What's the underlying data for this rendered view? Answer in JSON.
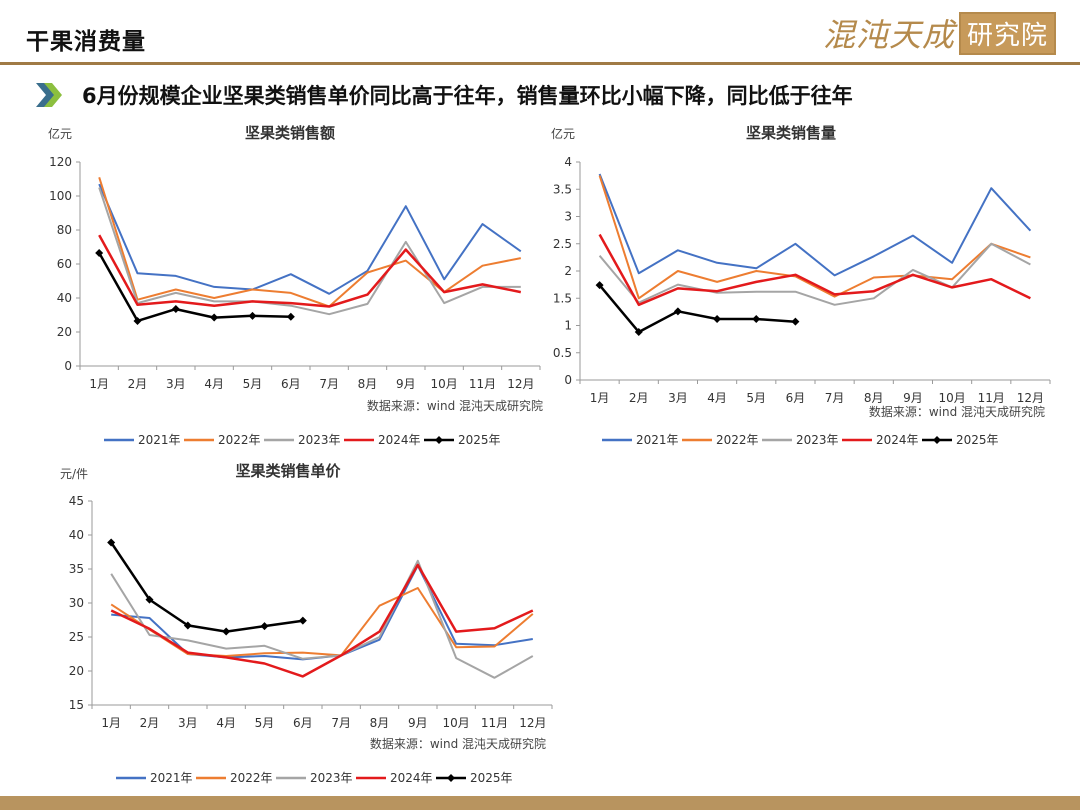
{
  "header": {
    "title": "干果消费量",
    "logo_main": "混沌天成",
    "logo_box": "研究院",
    "headline": "6月份规模企业坚果类销售单价同比高于往年，销售量环比小幅下降，同比低于往年"
  },
  "colors": {
    "accent": "#a07a45",
    "series": [
      "#4472c4",
      "#ed7d31",
      "#a5a5a5",
      "#e31a1c",
      "#000000"
    ]
  },
  "chart_data": [
    {
      "type": "line",
      "title": "坚果类销售额",
      "ylabel": "亿元",
      "source": "数据来源：wind  混沌天成研究院",
      "categories": [
        "1月",
        "2月",
        "3月",
        "4月",
        "5月",
        "6月",
        "7月",
        "8月",
        "9月",
        "10月",
        "11月",
        "12月"
      ],
      "ylim": [
        0,
        120
      ],
      "yticks": [
        0,
        20,
        40,
        60,
        80,
        100,
        120
      ],
      "ytick_labels": [
        "0",
        "20",
        "40",
        "60",
        "80",
        "100",
        "120"
      ],
      "legend": "bottom",
      "series": [
        {
          "name": "2021年",
          "values": [
            107,
            54.5,
            53,
            46.5,
            45,
            54,
            42.5,
            56,
            94,
            51,
            83.5,
            67.5
          ]
        },
        {
          "name": "2022年",
          "values": [
            111,
            39,
            45,
            40,
            45,
            43,
            35,
            55,
            62,
            43.5,
            59,
            63.5
          ]
        },
        {
          "name": "2023年",
          "values": [
            105,
            37,
            43,
            38,
            38,
            35.5,
            30.5,
            36.5,
            73,
            37,
            46.5,
            46.5
          ]
        },
        {
          "name": "2024年",
          "values": [
            77,
            36,
            38,
            35.5,
            38,
            37,
            35,
            42,
            68.5,
            43.5,
            48,
            43.5
          ]
        },
        {
          "name": "2025年",
          "values": [
            66.5,
            26.5,
            33.5,
            28.5,
            29.5,
            29,
            null,
            null,
            null,
            null,
            null,
            null
          ]
        }
      ]
    },
    {
      "type": "line",
      "title": "坚果类销售量",
      "ylabel": "亿元",
      "source": "数据来源：wind  混沌天成研究院",
      "categories": [
        "1月",
        "2月",
        "3月",
        "4月",
        "5月",
        "6月",
        "7月",
        "8月",
        "9月",
        "10月",
        "11月",
        "12月"
      ],
      "ylim": [
        0,
        4
      ],
      "yticks": [
        0,
        0.5,
        1,
        1.5,
        2,
        2.5,
        3,
        3.5,
        4
      ],
      "ytick_labels": [
        "0",
        "0.5",
        "1",
        "1.5",
        "2",
        "2.5",
        "3",
        "3.5",
        "4"
      ],
      "legend": "bottom",
      "series": [
        {
          "name": "2021年",
          "values": [
            3.78,
            1.96,
            2.38,
            2.15,
            2.05,
            2.5,
            1.92,
            2.27,
            2.65,
            2.15,
            3.52,
            2.74
          ]
        },
        {
          "name": "2022年",
          "values": [
            3.75,
            1.5,
            2.0,
            1.8,
            2.0,
            1.9,
            1.53,
            1.88,
            1.92,
            1.85,
            2.5,
            2.25
          ]
        },
        {
          "name": "2023年",
          "values": [
            2.28,
            1.42,
            1.75,
            1.6,
            1.62,
            1.62,
            1.38,
            1.5,
            2.02,
            1.7,
            2.5,
            2.12
          ]
        },
        {
          "name": "2024年",
          "values": [
            2.67,
            1.38,
            1.68,
            1.63,
            1.8,
            1.93,
            1.57,
            1.63,
            1.93,
            1.7,
            1.85,
            1.5
          ]
        },
        {
          "name": "2025年",
          "values": [
            1.74,
            0.88,
            1.26,
            1.12,
            1.12,
            1.07,
            null,
            null,
            null,
            null,
            null,
            null
          ]
        }
      ]
    },
    {
      "type": "line",
      "title": "坚果类销售单价",
      "ylabel": "元/件",
      "source": "数据来源：wind  混沌天成研究院",
      "categories": [
        "1月",
        "2月",
        "3月",
        "4月",
        "5月",
        "6月",
        "7月",
        "8月",
        "9月",
        "10月",
        "11月",
        "12月"
      ],
      "ylim": [
        15,
        45
      ],
      "yticks": [
        15,
        20,
        25,
        30,
        35,
        40,
        45
      ],
      "ytick_labels": [
        "15",
        "20",
        "25",
        "30",
        "35",
        "40",
        "45"
      ],
      "legend": "bottom",
      "series": [
        {
          "name": "2021年",
          "values": [
            28.3,
            27.8,
            22.5,
            22.0,
            22.2,
            21.7,
            22.3,
            24.6,
            35.5,
            24.0,
            23.8,
            24.7
          ]
        },
        {
          "name": "2022年",
          "values": [
            29.8,
            26.1,
            22.5,
            22.2,
            22.6,
            22.7,
            22.3,
            29.6,
            32.2,
            23.5,
            23.6,
            28.4
          ]
        },
        {
          "name": "2023年",
          "values": [
            34.3,
            25.3,
            24.5,
            23.3,
            23.7,
            21.8,
            22.3,
            25.0,
            36.2,
            21.9,
            19.0,
            22.2
          ]
        },
        {
          "name": "2024年",
          "values": [
            28.9,
            26.2,
            22.7,
            22.0,
            21.1,
            19.2,
            22.3,
            25.8,
            35.6,
            25.8,
            26.3,
            28.9
          ]
        },
        {
          "name": "2025年",
          "values": [
            38.9,
            30.5,
            26.7,
            25.8,
            26.6,
            27.4,
            null,
            null,
            null,
            null,
            null,
            null
          ]
        }
      ]
    }
  ]
}
